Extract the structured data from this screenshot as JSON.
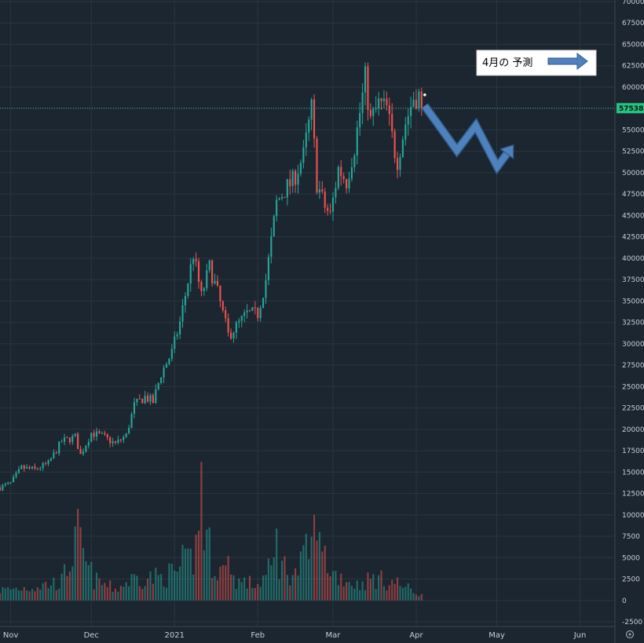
{
  "chart_data": {
    "type": "candlestick",
    "price_label": "57538",
    "current_price": 57538,
    "ylim": [
      -2500,
      70000
    ],
    "y_ticks": [
      70000,
      67500,
      65000,
      62500,
      60000,
      57500,
      55000,
      52500,
      50000,
      47500,
      45000,
      42500,
      40000,
      37500,
      35000,
      32500,
      30000,
      27500,
      25000,
      22500,
      20000,
      17500,
      15000,
      12500,
      10000,
      7500,
      5000,
      2500,
      0,
      -2500
    ],
    "x_labels": [
      "Nov",
      "Dec",
      "2021",
      "Feb",
      "Mar",
      "Apr",
      "May",
      "Jun"
    ],
    "x_start": "2020-10-28",
    "x_end": "2021-06-14",
    "label_dates": [
      "2020-11-01",
      "2020-12-01",
      "2021-01-01",
      "2021-02-01",
      "2021-03-01",
      "2021-04-01",
      "2021-05-01",
      "2021-06-01"
    ],
    "close_anchors": [
      [
        "2020-10-28",
        13200
      ],
      [
        "2020-11-01",
        13700
      ],
      [
        "2020-11-05",
        15500
      ],
      [
        "2020-11-10",
        15300
      ],
      [
        "2020-11-15",
        16000
      ],
      [
        "2020-11-20",
        18600
      ],
      [
        "2020-11-25",
        19100
      ],
      [
        "2020-11-27",
        17000
      ],
      [
        "2020-12-01",
        19600
      ],
      [
        "2020-12-05",
        19200
      ],
      [
        "2020-12-10",
        18300
      ],
      [
        "2020-12-14",
        19300
      ],
      [
        "2020-12-17",
        22800
      ],
      [
        "2020-12-21",
        23800
      ],
      [
        "2020-12-24",
        23200
      ],
      [
        "2020-12-27",
        26500
      ],
      [
        "2020-12-31",
        29000
      ],
      [
        "2021-01-03",
        32500
      ],
      [
        "2021-01-08",
        40500
      ],
      [
        "2021-01-11",
        35500
      ],
      [
        "2021-01-14",
        39000
      ],
      [
        "2021-01-17",
        36000
      ],
      [
        "2021-01-21",
        31000
      ],
      [
        "2021-01-24",
        32000
      ],
      [
        "2021-01-28",
        33500
      ],
      [
        "2021-02-01",
        33500
      ],
      [
        "2021-02-04",
        37500
      ],
      [
        "2021-02-08",
        46500
      ],
      [
        "2021-02-11",
        48000
      ],
      [
        "2021-02-14",
        49000
      ],
      [
        "2021-02-18",
        52000
      ],
      [
        "2021-02-21",
        57500
      ],
      [
        "2021-02-23",
        48800
      ],
      [
        "2021-02-26",
        46000
      ],
      [
        "2021-02-28",
        45000
      ],
      [
        "2021-03-03",
        50500
      ],
      [
        "2021-03-06",
        49000
      ],
      [
        "2021-03-09",
        53000
      ],
      [
        "2021-03-13",
        61000
      ],
      [
        "2021-03-15",
        56000
      ],
      [
        "2021-03-18",
        58000
      ],
      [
        "2021-03-21",
        57500
      ],
      [
        "2021-03-24",
        52500
      ],
      [
        "2021-03-25",
        51500
      ],
      [
        "2021-03-28",
        55800
      ],
      [
        "2021-03-31",
        58800
      ],
      [
        "2021-04-02",
        59000
      ],
      [
        "2021-04-03",
        57538
      ]
    ],
    "volume_anchors": [
      [
        "2020-10-28",
        1200
      ],
      [
        "2020-11-10",
        1600
      ],
      [
        "2020-11-20",
        2200
      ],
      [
        "2020-11-26",
        7000
      ],
      [
        "2020-12-01",
        2500
      ],
      [
        "2020-12-10",
        1300
      ],
      [
        "2020-12-17",
        2600
      ],
      [
        "2020-12-27",
        2700
      ],
      [
        "2021-01-03",
        3500
      ],
      [
        "2021-01-08",
        5000
      ],
      [
        "2021-01-11",
        9000
      ],
      [
        "2021-01-16",
        4000
      ],
      [
        "2021-01-25",
        2200
      ],
      [
        "2021-02-01",
        1800
      ],
      [
        "2021-02-08",
        4500
      ],
      [
        "2021-02-15",
        3000
      ],
      [
        "2021-02-22",
        7000
      ],
      [
        "2021-03-01",
        3200
      ],
      [
        "2021-03-10",
        1800
      ],
      [
        "2021-03-16",
        2600
      ],
      [
        "2021-03-25",
        2000
      ],
      [
        "2021-04-03",
        600
      ]
    ],
    "volume_spikes": [
      [
        "2020-11-26",
        10700
      ],
      [
        "2020-12-01",
        4500
      ],
      [
        "2021-01-04",
        6500
      ],
      [
        "2021-01-11",
        16200
      ],
      [
        "2021-01-21",
        5200
      ],
      [
        "2021-02-08",
        8400
      ],
      [
        "2021-02-22",
        10000
      ],
      [
        "2021-02-23",
        7000
      ],
      [
        "2021-02-26",
        6400
      ],
      [
        "2021-03-19",
        3500
      ]
    ],
    "up_color": "#26a69a",
    "down_color": "#ef5350"
  },
  "annotation": {
    "text": "4月の 予測",
    "arrow_color": "#4f81bd",
    "arrow_border": "#2e5a8a",
    "forecast_points": [
      [
        "2021-04-03",
        57800
      ],
      [
        "2021-04-15",
        52600
      ],
      [
        "2021-04-22",
        55500
      ],
      [
        "2021-04-30",
        50700
      ],
      [
        "2021-05-05",
        52800
      ]
    ]
  },
  "colors": {
    "background": "#1c2630",
    "grid": "#2a3540",
    "axis_text": "#c7cdd3",
    "price_line": "#26a69a",
    "price_tag_bg": "#26c281"
  }
}
